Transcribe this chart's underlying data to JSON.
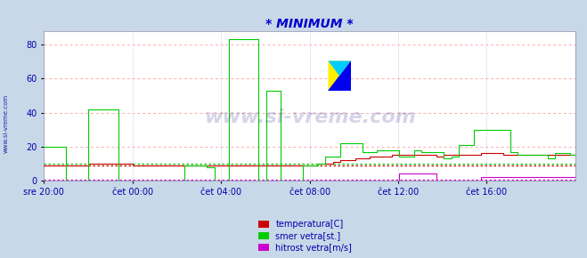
{
  "title": "* MINIMUM *",
  "title_color": "#0000cc",
  "bg_color": "#c8d8e8",
  "plot_bg_color": "#ffffff",
  "grid_color_major": "#ffaaaa",
  "grid_color_vert": "#aaaacc",
  "ylabel_color": "#0000aa",
  "xlabel_color": "#0000aa",
  "watermark_text": "www.si-vreme.com",
  "watermark_color": "#1a1a88",
  "watermark_alpha": 0.18,
  "sidebar_text": "www.si-vreme.com",
  "sidebar_color": "#0000aa",
  "ylim": [
    0,
    88
  ],
  "yticks": [
    0,
    20,
    40,
    60,
    80
  ],
  "xtick_labels": [
    "sre 20:00",
    "čet 00:00",
    "čet 04:00",
    "čet 08:00",
    "čet 12:00",
    "čet 16:00"
  ],
  "n_points": 288,
  "temp_color": "#cc0000",
  "wind_dir_color": "#00cc00",
  "wind_speed_color": "#cc00cc",
  "temp_avg": 9.0,
  "wind_dir_avg": 10.0,
  "wind_speed_avg": 0.7,
  "legend_labels": [
    "temperatura[C]",
    "smer vetra[st.]",
    "hitrost vetra[m/s]"
  ],
  "legend_colors": [
    "#cc0000",
    "#00cc00",
    "#cc00cc"
  ],
  "temp_data": [
    9,
    9,
    9,
    9,
    9,
    9,
    9,
    9,
    9,
    9,
    9,
    9,
    9,
    9,
    9,
    9,
    9,
    9,
    9,
    9,
    9,
    9,
    9,
    9,
    10,
    10,
    10,
    10,
    10,
    10,
    10,
    10,
    10,
    10,
    10,
    10,
    10,
    10,
    10,
    10,
    10,
    10,
    10,
    10,
    10,
    10,
    10,
    10,
    9,
    9,
    9,
    9,
    9,
    9,
    9,
    9,
    9,
    9,
    9,
    9,
    9,
    9,
    9,
    9,
    9,
    9,
    9,
    9,
    9,
    9,
    9,
    9,
    9,
    9,
    9,
    9,
    9,
    9,
    9,
    9,
    9,
    9,
    9,
    9,
    9,
    9,
    9,
    9,
    9,
    9,
    9,
    9,
    9,
    9,
    9,
    9,
    9,
    9,
    9,
    9,
    9,
    9,
    9,
    9,
    9,
    9,
    9,
    9,
    9,
    9,
    9,
    9,
    9,
    9,
    9,
    9,
    9,
    9,
    9,
    9,
    9,
    9,
    9,
    9,
    9,
    9,
    9,
    9,
    9,
    9,
    9,
    9,
    9,
    9,
    9,
    9,
    9,
    9,
    9,
    9,
    9,
    9,
    9,
    9,
    9,
    9,
    9,
    9,
    10,
    10,
    10,
    10,
    10,
    10,
    10,
    10,
    11,
    11,
    11,
    11,
    12,
    12,
    12,
    12,
    12,
    12,
    12,
    12,
    13,
    13,
    13,
    13,
    13,
    13,
    13,
    13,
    14,
    14,
    14,
    14,
    14,
    14,
    14,
    14,
    14,
    14,
    14,
    14,
    15,
    15,
    15,
    15,
    15,
    15,
    15,
    15,
    15,
    15,
    15,
    15,
    15,
    15,
    15,
    15,
    15,
    15,
    15,
    15,
    15,
    15,
    15,
    15,
    14,
    14,
    14,
    14,
    15,
    15,
    15,
    15,
    15,
    15,
    15,
    15,
    15,
    15,
    15,
    15,
    15,
    15,
    15,
    15,
    15,
    15,
    15,
    15,
    16,
    16,
    16,
    16,
    16,
    16,
    16,
    16,
    16,
    16,
    16,
    16,
    15,
    15,
    15,
    15,
    15,
    15,
    15,
    15,
    15,
    15,
    15,
    15,
    15,
    15,
    15,
    15,
    15,
    15,
    15,
    15,
    15,
    15,
    15,
    15,
    15,
    15,
    15,
    15,
    15,
    15,
    15,
    15,
    15,
    15,
    15,
    15,
    15,
    15,
    15,
    15
  ],
  "wind_dir_data": [
    20,
    20,
    20,
    20,
    20,
    20,
    20,
    20,
    20,
    20,
    20,
    20,
    0,
    0,
    0,
    0,
    0,
    0,
    0,
    0,
    0,
    0,
    0,
    0,
    42,
    42,
    42,
    42,
    42,
    42,
    42,
    42,
    42,
    42,
    42,
    42,
    42,
    42,
    42,
    42,
    0,
    0,
    0,
    0,
    0,
    0,
    0,
    0,
    0,
    0,
    0,
    0,
    0,
    0,
    0,
    0,
    0,
    0,
    0,
    0,
    0,
    0,
    0,
    0,
    0,
    0,
    0,
    0,
    0,
    0,
    0,
    0,
    0,
    0,
    0,
    0,
    9,
    9,
    9,
    9,
    9,
    9,
    9,
    9,
    9,
    9,
    9,
    9,
    8,
    8,
    8,
    8,
    0,
    0,
    0,
    0,
    0,
    0,
    0,
    0,
    83,
    83,
    83,
    83,
    83,
    83,
    83,
    83,
    83,
    83,
    83,
    83,
    83,
    83,
    83,
    83,
    0,
    0,
    0,
    0,
    53,
    53,
    53,
    53,
    53,
    53,
    53,
    53,
    0,
    0,
    0,
    0,
    0,
    0,
    0,
    0,
    0,
    0,
    0,
    0,
    9,
    9,
    9,
    9,
    9,
    9,
    9,
    9,
    10,
    10,
    10,
    10,
    14,
    14,
    14,
    14,
    14,
    14,
    14,
    14,
    22,
    22,
    22,
    22,
    22,
    22,
    22,
    22,
    22,
    22,
    22,
    22,
    17,
    17,
    17,
    17,
    17,
    17,
    17,
    17,
    18,
    18,
    18,
    18,
    18,
    18,
    18,
    18,
    18,
    18,
    18,
    18,
    14,
    14,
    14,
    14,
    14,
    14,
    14,
    14,
    18,
    18,
    18,
    18,
    17,
    17,
    17,
    17,
    17,
    17,
    17,
    17,
    17,
    17,
    17,
    17,
    13,
    13,
    13,
    13,
    14,
    14,
    14,
    14,
    21,
    21,
    21,
    21,
    21,
    21,
    21,
    21,
    30,
    30,
    30,
    30,
    30,
    30,
    30,
    30,
    30,
    30,
    30,
    30,
    30,
    30,
    30,
    30,
    30,
    30,
    30,
    30,
    17,
    17,
    17,
    17,
    15,
    15,
    15,
    15,
    15,
    15,
    15,
    15,
    15,
    15,
    15,
    15,
    15,
    15,
    15,
    15,
    13,
    13,
    13,
    13,
    16,
    16,
    16,
    16,
    16,
    16,
    16,
    16,
    15,
    15,
    15,
    15
  ],
  "wind_speed_data": [
    0,
    0,
    0,
    0,
    0,
    0,
    0,
    0,
    0,
    0,
    0,
    0,
    0,
    0,
    0,
    0,
    0,
    0,
    0,
    0,
    0,
    0,
    0,
    0,
    0,
    0,
    0,
    0,
    0,
    0,
    0,
    0,
    0,
    0,
    0,
    0,
    0,
    0,
    0,
    0,
    0,
    0,
    0,
    0,
    0,
    0,
    0,
    0,
    0,
    0,
    0,
    0,
    0,
    0,
    0,
    0,
    0,
    0,
    0,
    0,
    0,
    0,
    0,
    0,
    0,
    0,
    0,
    0,
    0,
    0,
    0,
    0,
    0,
    0,
    0,
    0,
    0,
    0,
    0,
    0,
    0,
    0,
    0,
    0,
    0,
    0,
    0,
    0,
    0,
    0,
    0,
    0,
    0,
    0,
    0,
    0,
    0,
    0,
    0,
    0,
    0,
    0,
    0,
    0,
    0,
    0,
    0,
    0,
    0,
    0,
    0,
    0,
    0,
    0,
    0,
    0,
    0,
    0,
    0,
    0,
    0,
    0,
    0,
    0,
    0,
    0,
    0,
    0,
    0,
    0,
    0,
    0,
    0,
    0,
    0,
    0,
    0,
    0,
    0,
    0,
    0,
    0,
    0,
    0,
    0,
    0,
    0,
    0,
    0,
    0,
    0,
    0,
    0,
    0,
    0,
    0,
    0,
    0,
    0,
    0,
    0,
    0,
    0,
    0,
    0,
    0,
    0,
    0,
    0,
    0,
    0,
    0,
    0,
    0,
    0,
    0,
    0,
    0,
    0,
    0,
    0,
    0,
    0,
    0,
    0,
    0,
    0,
    0,
    0,
    0,
    0,
    0,
    4,
    4,
    4,
    4,
    4,
    4,
    4,
    4,
    4,
    4,
    4,
    4,
    4,
    4,
    4,
    4,
    4,
    4,
    4,
    4,
    0,
    0,
    0,
    0,
    0,
    0,
    0,
    0,
    0,
    0,
    0,
    0,
    0,
    0,
    0,
    0,
    0,
    0,
    0,
    0,
    0,
    0,
    0,
    0,
    2,
    2,
    2,
    2,
    2,
    2,
    2,
    2,
    2,
    2,
    2,
    2,
    2,
    2,
    2,
    2,
    2,
    2,
    2,
    2,
    2,
    2,
    2,
    2,
    2,
    2,
    2,
    2,
    2,
    2,
    2,
    2,
    2,
    2,
    2,
    2,
    2,
    2,
    2,
    2,
    2,
    2,
    2,
    2,
    2,
    2,
    2,
    2,
    2,
    2,
    2,
    2
  ]
}
